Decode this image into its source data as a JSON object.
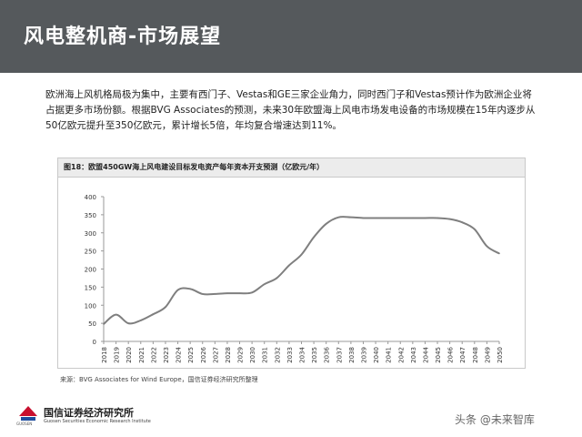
{
  "header": {
    "title": "风电整机商-市场展望"
  },
  "intro": {
    "text": "欧洲海上风机格局极为集中，主要有西门子、Vestas和GE三家企业角力，同时西门子和Vestas预计作为欧洲企业将占据更多市场份额。根据BVG Associates的预测，未来30年欧盟海上风电市场发电设备的市场规模在15年内逐步从50亿欧元提升至350亿欧元，累计增长5倍，年均复合增速达到11%。"
  },
  "chart_data": {
    "type": "line",
    "title": "图18：欧盟450GW海上风电建设目标发电资产每年资本开支预测（亿欧元/年）",
    "x": [
      "2018",
      "2019",
      "2020",
      "2021",
      "2022",
      "2023",
      "2024",
      "2025",
      "2026",
      "2027",
      "2028",
      "2029",
      "2030",
      "2031",
      "2032",
      "2033",
      "2034",
      "2035",
      "2036",
      "2037",
      "2038",
      "2039",
      "2040",
      "2041",
      "2042",
      "2043",
      "2044",
      "2045",
      "2046",
      "2047",
      "2048",
      "2049",
      "2050"
    ],
    "series": [
      {
        "values": [
          48,
          74,
          50,
          58,
          75,
          95,
          142,
          145,
          131,
          131,
          133,
          133,
          135,
          158,
          175,
          210,
          240,
          288,
          325,
          343,
          343,
          341,
          341,
          341,
          341,
          341,
          341,
          341,
          338,
          329,
          310,
          263,
          243
        ]
      }
    ],
    "yticks": [
      0,
      50,
      100,
      150,
      200,
      250,
      300,
      350,
      400
    ],
    "ylim": [
      0,
      400
    ],
    "xlabel": "",
    "ylabel": "",
    "grid": false,
    "line_color": "#7f7f7f"
  },
  "source": {
    "text": "来源：BVG Associates for Wind Europe，国信证券经济研究所整理"
  },
  "logo": {
    "name": "国信证券经济研究所",
    "english": "Guosen Securities Economic Research Institute",
    "small": "GUOSEN"
  },
  "watermark": {
    "text": "头条 @未来智库"
  }
}
